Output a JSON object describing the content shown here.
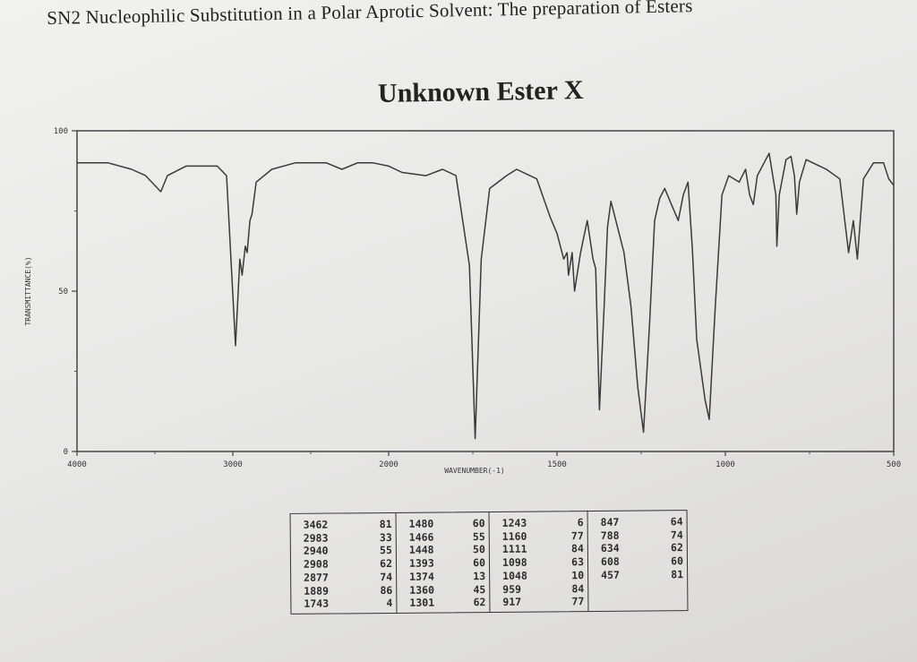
{
  "page": {
    "title": "SN2 Nucleophilic Substitution in a Polar Aprotic Solvent: The preparation of Esters"
  },
  "chart_data": {
    "type": "line",
    "title": "Unknown Ester X",
    "xlabel": "WAVENUMBER(-1)",
    "ylabel": "TRANSMITTANCE(%)",
    "xlim": [
      4000,
      500
    ],
    "ylim": [
      0,
      100
    ],
    "x_ticks": [
      "4000",
      "3000",
      "2000",
      "1500",
      "1000",
      "500"
    ],
    "y_ticks": [
      "100",
      "50",
      "0"
    ],
    "line_color": "#3a3a3a",
    "series": [
      {
        "name": "Unknown Ester X",
        "points": [
          [
            4000,
            90
          ],
          [
            3800,
            90
          ],
          [
            3650,
            88
          ],
          [
            3560,
            86
          ],
          [
            3462,
            81
          ],
          [
            3420,
            86
          ],
          [
            3300,
            89
          ],
          [
            3100,
            89
          ],
          [
            3040,
            86
          ],
          [
            2983,
            33
          ],
          [
            2955,
            60
          ],
          [
            2940,
            55
          ],
          [
            2920,
            64
          ],
          [
            2908,
            62
          ],
          [
            2890,
            72
          ],
          [
            2877,
            74
          ],
          [
            2850,
            84
          ],
          [
            2750,
            88
          ],
          [
            2600,
            90
          ],
          [
            2400,
            90
          ],
          [
            2300,
            88
          ],
          [
            2200,
            90
          ],
          [
            2100,
            90
          ],
          [
            2000,
            89
          ],
          [
            1960,
            87
          ],
          [
            1889,
            86
          ],
          [
            1840,
            88
          ],
          [
            1800,
            86
          ],
          [
            1760,
            58
          ],
          [
            1743,
            4
          ],
          [
            1725,
            60
          ],
          [
            1700,
            82
          ],
          [
            1650,
            86
          ],
          [
            1620,
            88
          ],
          [
            1560,
            85
          ],
          [
            1520,
            73
          ],
          [
            1500,
            68
          ],
          [
            1480,
            60
          ],
          [
            1470,
            62
          ],
          [
            1466,
            55
          ],
          [
            1455,
            62
          ],
          [
            1448,
            50
          ],
          [
            1430,
            62
          ],
          [
            1410,
            72
          ],
          [
            1393,
            60
          ],
          [
            1385,
            57
          ],
          [
            1374,
            13
          ],
          [
            1360,
            45
          ],
          [
            1350,
            70
          ],
          [
            1340,
            78
          ],
          [
            1330,
            74
          ],
          [
            1301,
            62
          ],
          [
            1280,
            45
          ],
          [
            1260,
            20
          ],
          [
            1243,
            6
          ],
          [
            1225,
            40
          ],
          [
            1210,
            72
          ],
          [
            1195,
            79
          ],
          [
            1180,
            82
          ],
          [
            1160,
            77
          ],
          [
            1140,
            72
          ],
          [
            1125,
            80
          ],
          [
            1111,
            84
          ],
          [
            1098,
            63
          ],
          [
            1085,
            35
          ],
          [
            1060,
            16
          ],
          [
            1048,
            10
          ],
          [
            1030,
            45
          ],
          [
            1010,
            80
          ],
          [
            990,
            86
          ],
          [
            959,
            84
          ],
          [
            940,
            88
          ],
          [
            928,
            80
          ],
          [
            917,
            77
          ],
          [
            905,
            86
          ],
          [
            880,
            91
          ],
          [
            870,
            93
          ],
          [
            850,
            80
          ],
          [
            847,
            64
          ],
          [
            840,
            80
          ],
          [
            820,
            91
          ],
          [
            805,
            92
          ],
          [
            795,
            86
          ],
          [
            788,
            74
          ],
          [
            780,
            84
          ],
          [
            760,
            91
          ],
          [
            720,
            89
          ],
          [
            700,
            88
          ],
          [
            660,
            85
          ],
          [
            634,
            62
          ],
          [
            620,
            72
          ],
          [
            608,
            60
          ],
          [
            590,
            85
          ],
          [
            560,
            90
          ],
          [
            530,
            90
          ],
          [
            515,
            85
          ],
          [
            500,
            83
          ]
        ]
      }
    ],
    "peak_table": {
      "columns": [
        [
          [
            "3462",
            "81"
          ],
          [
            "2983",
            "33"
          ],
          [
            "2940",
            "55"
          ],
          [
            "2908",
            "62"
          ],
          [
            "2877",
            "74"
          ],
          [
            "1889",
            "86"
          ],
          [
            "1743",
            "4"
          ]
        ],
        [
          [
            "1480",
            "60"
          ],
          [
            "1466",
            "55"
          ],
          [
            "1448",
            "50"
          ],
          [
            "1393",
            "60"
          ],
          [
            "1374",
            "13"
          ],
          [
            "1360",
            "45"
          ],
          [
            "1301",
            "62"
          ]
        ],
        [
          [
            "1243",
            "6"
          ],
          [
            "1160",
            "77"
          ],
          [
            "1111",
            "84"
          ],
          [
            "1098",
            "63"
          ],
          [
            "1048",
            "10"
          ],
          [
            "959",
            "84"
          ],
          [
            "917",
            "77"
          ]
        ],
        [
          [
            "847",
            "64"
          ],
          [
            "788",
            "74"
          ],
          [
            "634",
            "62"
          ],
          [
            "608",
            "60"
          ],
          [
            "457",
            "81"
          ]
        ]
      ]
    }
  }
}
